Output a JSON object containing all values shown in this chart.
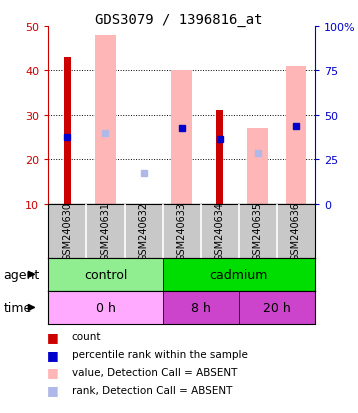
{
  "title": "GDS3079 / 1396816_at",
  "samples": [
    "GSM240630",
    "GSM240631",
    "GSM240632",
    "GSM240633",
    "GSM240634",
    "GSM240635",
    "GSM240636"
  ],
  "count_values": [
    43,
    null,
    null,
    null,
    31,
    null,
    null
  ],
  "count_color": "#cc0000",
  "value_absent": [
    null,
    48,
    null,
    40,
    null,
    27,
    41
  ],
  "value_absent_color": "#ffb6b6",
  "rank_present": [
    25,
    null,
    null,
    27,
    24.5,
    null,
    27.5
  ],
  "rank_present_color": "#0000cc",
  "rank_absent": [
    null,
    26,
    17,
    null,
    null,
    21.5,
    null
  ],
  "rank_absent_color": "#b0b8e8",
  "ylim_left": [
    10,
    50
  ],
  "ylim_right": [
    0,
    100
  ],
  "yticks_left": [
    10,
    20,
    30,
    40,
    50
  ],
  "yticks_right": [
    0,
    25,
    50,
    75,
    100
  ],
  "ytick_labels_right": [
    "0",
    "25",
    "50",
    "75",
    "100%"
  ],
  "left_axis_color": "#cc0000",
  "right_axis_color": "#0000cc",
  "agent_groups": [
    {
      "label": "control",
      "start": 0,
      "end": 3,
      "color": "#90ee90"
    },
    {
      "label": "cadmium",
      "start": 3,
      "end": 7,
      "color": "#00dd00"
    }
  ],
  "time_colors": [
    "#ffaaff",
    "#cc44cc",
    "#cc44cc"
  ],
  "time_groups": [
    {
      "label": "0 h",
      "start": 0,
      "end": 3
    },
    {
      "label": "8 h",
      "start": 3,
      "end": 5
    },
    {
      "label": "20 h",
      "start": 5,
      "end": 7
    }
  ],
  "legend_items": [
    {
      "label": "count",
      "color": "#cc0000"
    },
    {
      "label": "percentile rank within the sample",
      "color": "#0000cc"
    },
    {
      "label": "value, Detection Call = ABSENT",
      "color": "#ffb6b6"
    },
    {
      "label": "rank, Detection Call = ABSENT",
      "color": "#b0b8e8"
    }
  ],
  "title_fontsize": 10,
  "sample_label_fontsize": 7,
  "row_label_fontsize": 9,
  "legend_fontsize": 7.5
}
